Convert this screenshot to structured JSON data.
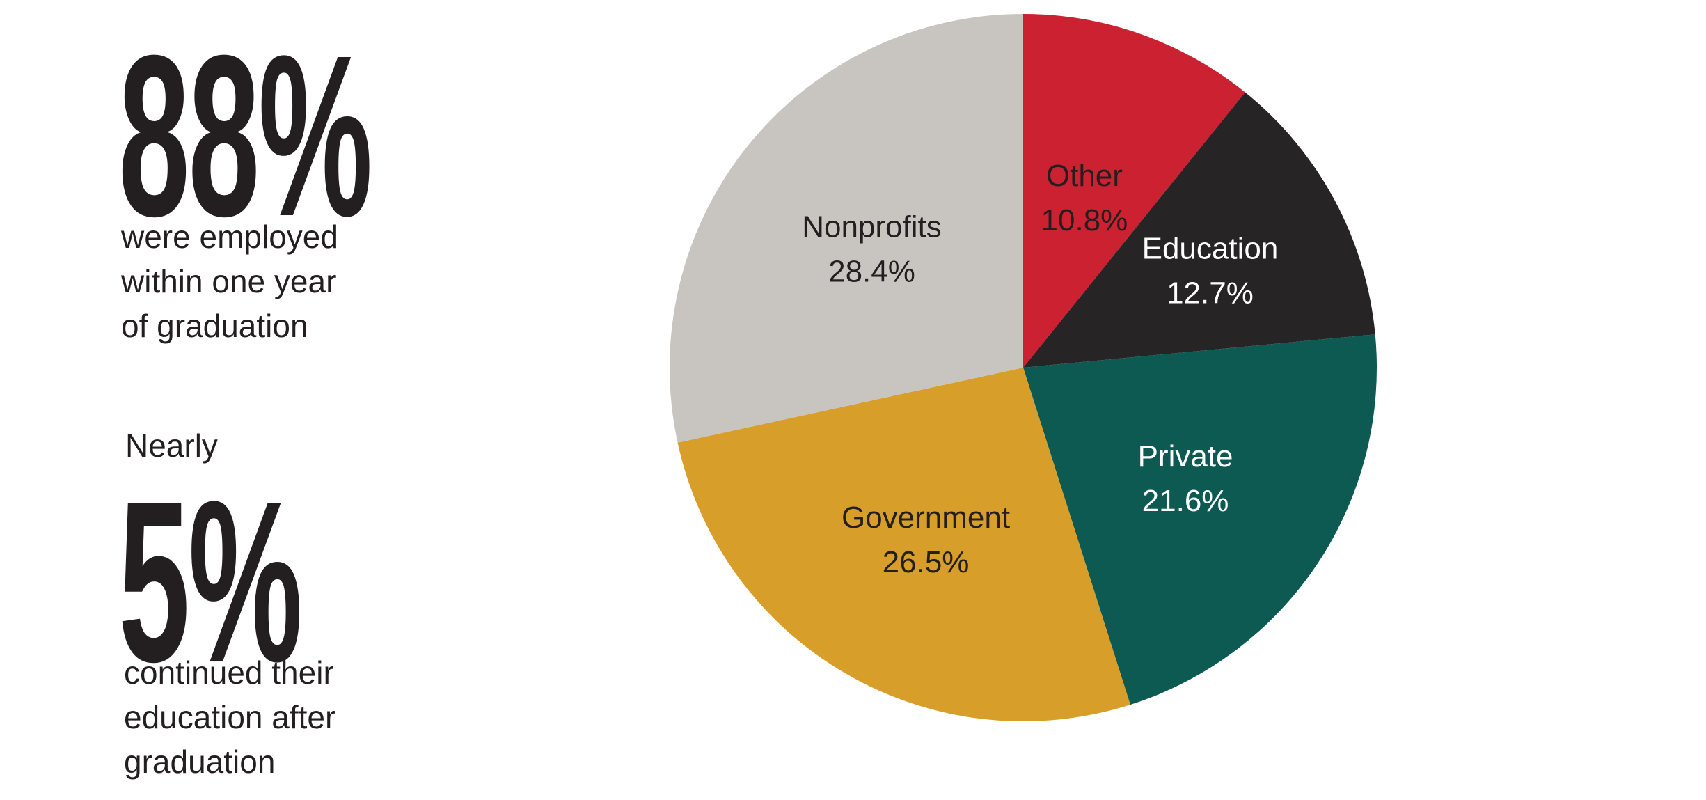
{
  "stats": {
    "employed": {
      "value": "88%",
      "caption": "were employed\nwithin one year\nof graduation"
    },
    "continued": {
      "prefix": "Nearly",
      "value": "5%",
      "caption": "continued their\neducation after\ngraduation"
    }
  },
  "chart_data": {
    "type": "pie",
    "start_angle": "12 o'clock",
    "direction": "clockwise",
    "slices": [
      {
        "label": "Other",
        "value": 10.8,
        "value_label": "10.8%",
        "color": "#cc2131",
        "text_color": "#231f20"
      },
      {
        "label": "Education",
        "value": 12.7,
        "value_label": "12.7%",
        "color": "#262425",
        "text_color": "#ffffff"
      },
      {
        "label": "Private",
        "value": 21.6,
        "value_label": "21.6%",
        "color": "#0d5a52",
        "text_color": "#ffffff"
      },
      {
        "label": "Government",
        "value": 26.5,
        "value_label": "26.5%",
        "color": "#d89e2a",
        "text_color": "#231f20"
      },
      {
        "label": "Nonprofits",
        "value": 28.4,
        "value_label": "28.4%",
        "color": "#c8c5c1",
        "text_color": "#231f20"
      }
    ]
  }
}
